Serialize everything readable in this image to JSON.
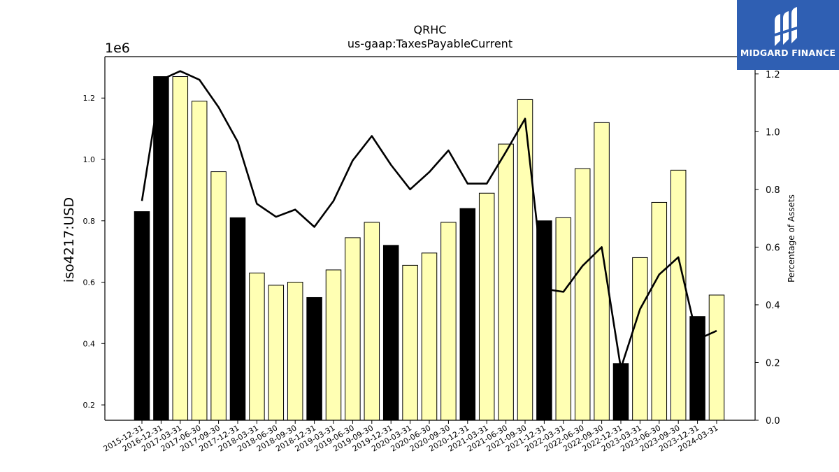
{
  "chart_data": {
    "type": "bar",
    "title": "QRHC",
    "subtitle": "us-gaap:TaxesPayableCurrent",
    "ylabel": "iso4217:USD",
    "ylabel_right": "Percentage of Assets",
    "y_multiplier": "1e6",
    "ylim": [
      0.15,
      1.335
    ],
    "ylim_right": [
      0.0,
      1.26
    ],
    "yticks": [
      "0.2",
      "0.4",
      "0.6",
      "0.8",
      "1.0",
      "1.2"
    ],
    "yticks_right": [
      "0.0",
      "0.2",
      "0.4",
      "0.6",
      "0.8",
      "1.0",
      "1.2"
    ],
    "colors": {
      "bar_fy": "#000000",
      "bar_q": "#ffffb3",
      "line": "#000000"
    },
    "categories": [
      "2015-12-31",
      "2016-12-31",
      "2017-03-31",
      "2017-06-30",
      "2017-09-30",
      "2017-12-31",
      "2018-03-31",
      "2018-06-30",
      "2018-09-30",
      "2018-12-31",
      "2019-03-31",
      "2019-06-30",
      "2019-09-30",
      "2019-12-31",
      "2020-03-31",
      "2020-06-30",
      "2020-09-30",
      "2020-12-31",
      "2021-03-31",
      "2021-06-30",
      "2021-09-30",
      "2021-12-31",
      "2022-03-31",
      "2022-06-30",
      "2022-09-30",
      "2022-12-31",
      "2023-03-31",
      "2023-06-30",
      "2023-09-30",
      "2023-12-31",
      "2024-03-31"
    ],
    "series": [
      {
        "type": "bar",
        "values": [
          0.83,
          1.27,
          1.27,
          1.19,
          0.96,
          0.81,
          0.63,
          0.59,
          0.6,
          0.55,
          0.64,
          0.745,
          0.795,
          0.72,
          0.655,
          0.695,
          0.795,
          0.84,
          0.89,
          1.05,
          1.195,
          0.8,
          0.81,
          0.97,
          1.12,
          0.335,
          0.68,
          0.86,
          0.965,
          0.488,
          0.558
        ],
        "fiscal_year_end": [
          true,
          true,
          false,
          false,
          false,
          true,
          false,
          false,
          false,
          true,
          false,
          false,
          false,
          true,
          false,
          false,
          false,
          true,
          false,
          false,
          false,
          true,
          false,
          false,
          false,
          true,
          false,
          false,
          false,
          true,
          false
        ]
      },
      {
        "type": "line",
        "axis": "right",
        "values": [
          0.76,
          1.18,
          1.21,
          1.18,
          1.085,
          0.965,
          0.75,
          0.705,
          0.73,
          0.67,
          0.76,
          0.9,
          0.985,
          0.885,
          0.8,
          0.86,
          0.935,
          0.82,
          0.82,
          0.93,
          1.045,
          0.455,
          0.445,
          0.535,
          0.6,
          0.18,
          0.385,
          0.505,
          0.565,
          0.28,
          0.31
        ]
      }
    ]
  },
  "logo": {
    "text": "MIDGARD FINANCE",
    "icon": "midgard-logo-icon"
  }
}
